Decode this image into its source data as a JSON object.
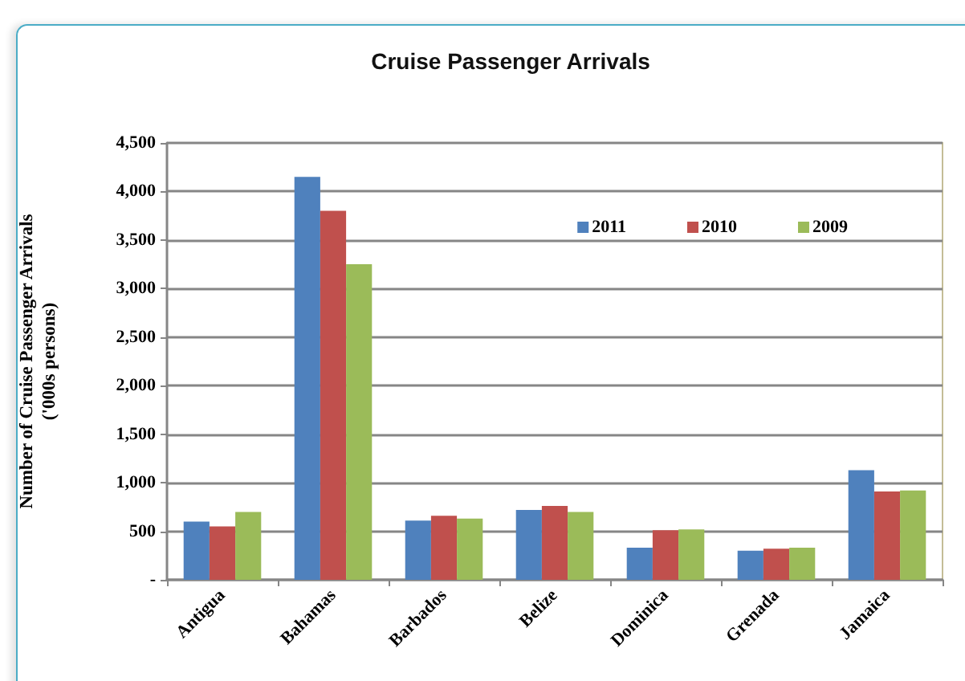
{
  "chart_data": {
    "type": "bar",
    "title": "Cruise Passenger Arrivals",
    "ylabel": "Number of Cruise Passenger Arrivals\n('000s persons)",
    "categories": [
      "Antigua",
      "Bahamas",
      "Barbados",
      "Belize",
      "Dominica",
      "Grenada",
      "Jamaica"
    ],
    "series": [
      {
        "name": "2011",
        "color": "#4f81bd",
        "values": [
          600,
          4150,
          610,
          720,
          330,
          300,
          1130
        ]
      },
      {
        "name": "2010",
        "color": "#c0504d",
        "values": [
          550,
          3800,
          660,
          760,
          510,
          320,
          910
        ]
      },
      {
        "name": "2009",
        "color": "#9bbb59",
        "values": [
          700,
          3250,
          630,
          700,
          520,
          330,
          920
        ]
      }
    ],
    "ylim": [
      0,
      4500
    ],
    "yticks": [
      {
        "value": 0,
        "label": "-"
      },
      500,
      {
        "value": 1000,
        "label": "1,000"
      },
      {
        "value": 1500,
        "label": "1,500"
      },
      {
        "value": 2000,
        "label": "2,000"
      },
      {
        "value": 2500,
        "label": "2,500"
      },
      {
        "value": 3000,
        "label": "3,000"
      },
      {
        "value": 3500,
        "label": "3,500"
      },
      {
        "value": 4000,
        "label": "4,000"
      },
      {
        "value": 4500,
        "label": "4,500"
      }
    ],
    "grid": "y",
    "legend": "top right"
  }
}
